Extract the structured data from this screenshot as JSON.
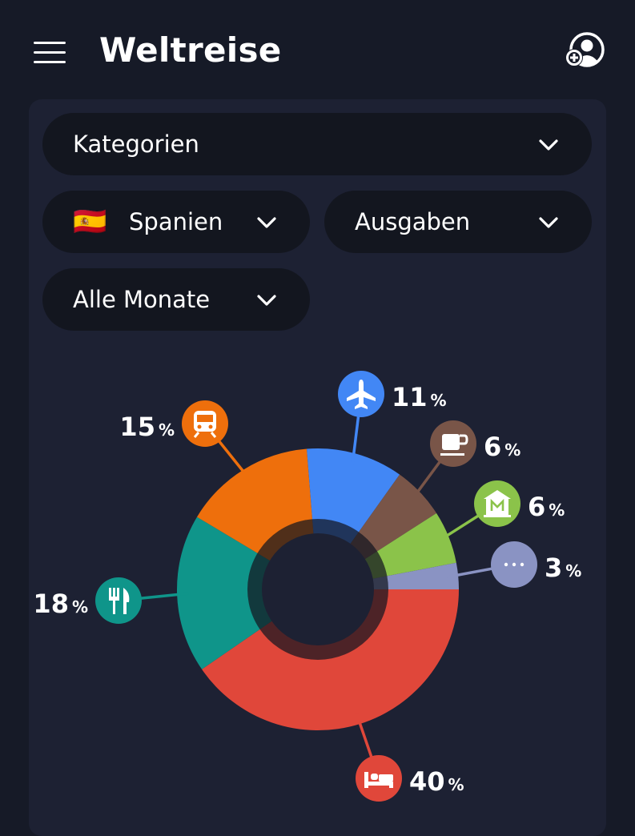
{
  "app": {
    "title": "Weltreise"
  },
  "icons": {
    "menu": "hamburger-menu-icon",
    "profile": "add-user-icon",
    "chevron": "chevron-down-icon"
  },
  "filters": {
    "category": {
      "label": "Kategorien"
    },
    "country": {
      "flag": "🇪🇸",
      "label": "Spanien"
    },
    "type": {
      "label": "Ausgaben"
    },
    "period": {
      "label": "Alle Monate"
    }
  },
  "chart_data": {
    "type": "pie",
    "style": "donut",
    "title": "",
    "categories": [
      "Unterkunft",
      "Essen",
      "Transport",
      "Flug",
      "Café",
      "Sehenswürdigkeiten",
      "Sonstiges"
    ],
    "values": [
      40,
      18,
      15,
      11,
      6,
      6,
      3
    ],
    "labels": [
      "40",
      "18",
      "15",
      "11",
      "6",
      "6",
      "3"
    ],
    "unit": "%",
    "icons": [
      "bed-icon",
      "fork-knife-icon",
      "train-icon",
      "airplane-icon",
      "coffee-cup-icon",
      "museum-icon",
      "more-dots-icon"
    ],
    "colors": [
      "#e0473a",
      "#0f958a",
      "#ee6f0c",
      "#4287f5",
      "#795548",
      "#8bc34a",
      "#8a93c3"
    ]
  }
}
